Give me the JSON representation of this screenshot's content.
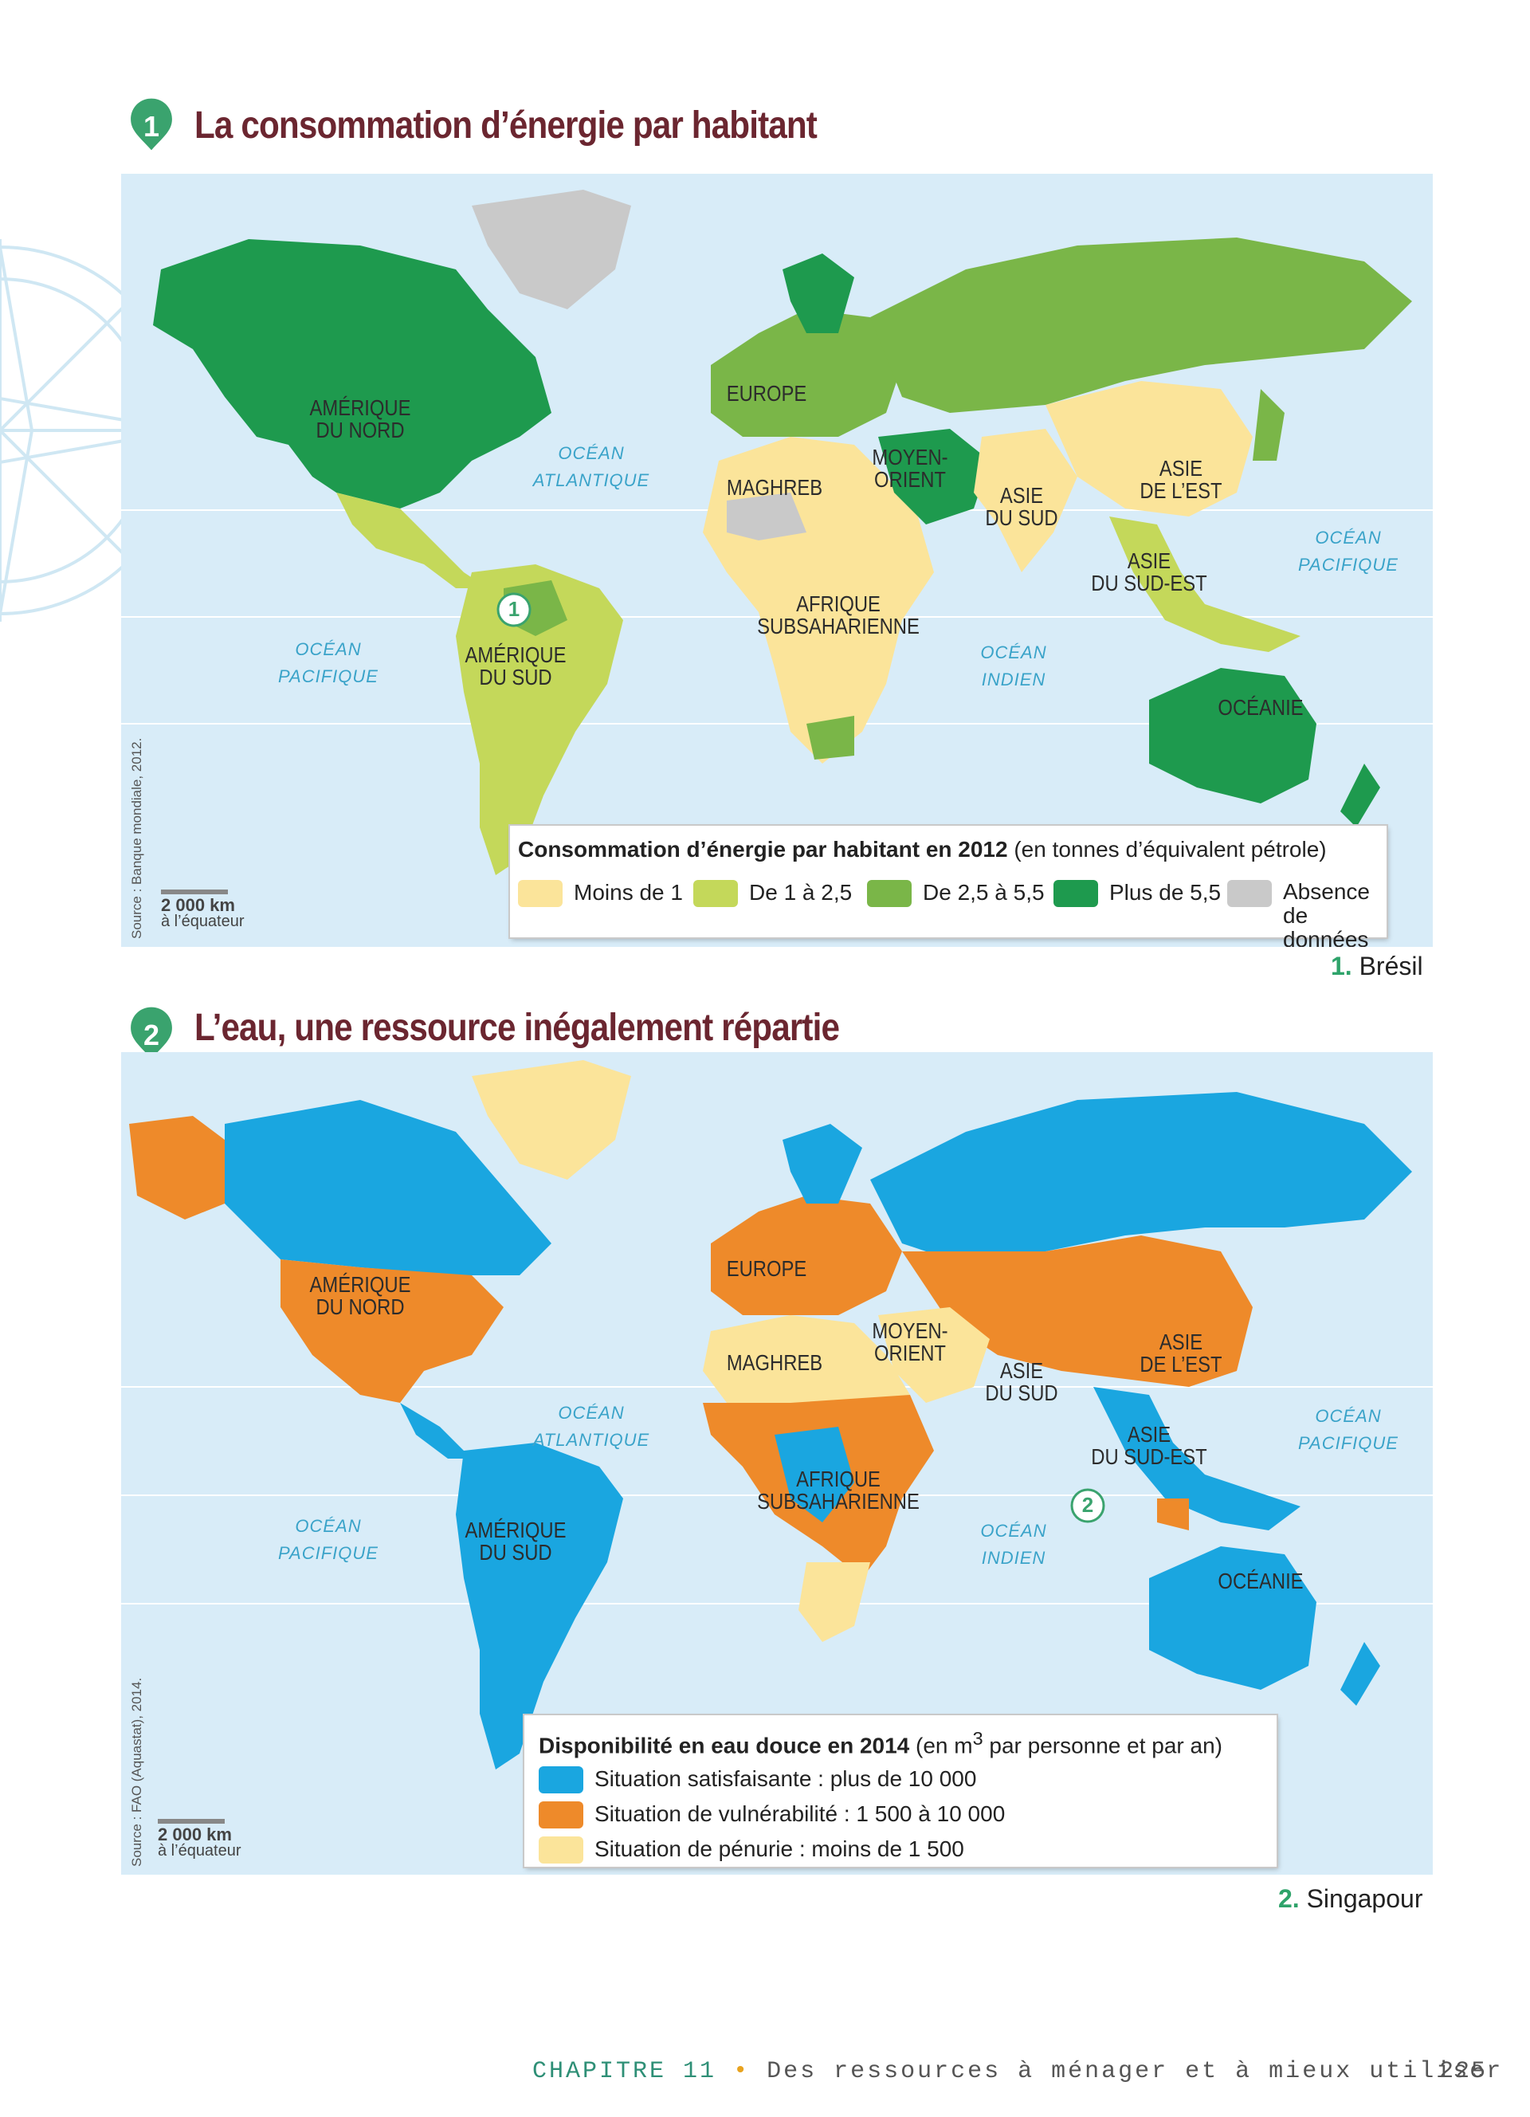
{
  "colors": {
    "title": "#6b2630",
    "badge": "#3aa36e",
    "ocean": "#d8ecf8",
    "ocean_text": "#3aa3c9",
    "energy_lt1": "#fbe49a",
    "energy_1_2_5": "#c4d85a",
    "energy_2_5_5_5": "#7ab648",
    "energy_gt5_5": "#1e9a4e",
    "no_data": "#c9c9c9",
    "water_satisfying": "#1aa6e0",
    "water_vulnerable": "#ee8a2a",
    "water_shortage": "#fbe49a"
  },
  "map1": {
    "number": "1",
    "title": "La consommation d’énergie par habitant",
    "regions": {
      "north_america": "AMÉRIQUE\nDU NORD",
      "europe": "EUROPE",
      "middle_east": "MOYEN-\nORIENT",
      "maghreb": "MAGHREB",
      "south_asia": "ASIE\nDU SUD",
      "east_asia": "ASIE\nDE L’EST",
      "southeast_asia": "ASIE\nDU SUD-EST",
      "subsaharan_africa": "AFRIQUE\nSUBSAHARIENNE",
      "south_america": "AMÉRIQUE\nDU SUD",
      "oceania": "OCÉANIE"
    },
    "oceans": {
      "atlantic": "OCÉAN\nATLANTIQUE",
      "pacific_east": "OCÉAN\nPACIFIQUE",
      "pacific_west": "OCÉAN\nPACIFIQUE",
      "indian": "OCÉAN\nINDIEN"
    },
    "source": "Source : Banque mondiale, 2012.",
    "scale_km": "2 000 km",
    "scale_note": "à l’équateur",
    "legend": {
      "title_bold": "Consommation d’énergie par habitant en 2012",
      "title_rest": " (en tonnes d’équivalent pétrole)",
      "items": [
        "Moins de 1",
        "De 1 à 2,5",
        "De 2,5 à 5,5",
        "Plus de 5,5",
        "Absence\nde données"
      ]
    },
    "marker": "1",
    "caption_num": "1.",
    "caption_text": " Brésil"
  },
  "map2": {
    "number": "2",
    "title": "L’eau, une ressource inégalement répartie",
    "regions": {
      "north_america": "AMÉRIQUE\nDU NORD",
      "europe": "EUROPE",
      "middle_east": "MOYEN-\nORIENT",
      "maghreb": "MAGHREB",
      "south_asia": "ASIE\nDU SUD",
      "east_asia": "ASIE\nDE L’EST",
      "southeast_asia": "ASIE\nDU SUD-EST",
      "subsaharan_africa": "AFRIQUE\nSUBSAHARIENNE",
      "south_america": "AMÉRIQUE\nDU SUD",
      "oceania": "OCÉANIE"
    },
    "oceans": {
      "atlantic": "OCÉAN\nATLANTIQUE",
      "pacific_east": "OCÉAN\nPACIFIQUE",
      "pacific_west": "OCÉAN\nPACIFIQUE",
      "indian": "OCÉAN\nINDIEN"
    },
    "source": "Source : FAO (Aquastat), 2014.",
    "scale_km": "2 000 km",
    "scale_note": "à l’équateur",
    "legend": {
      "title_bold": "Disponibilité en eau douce en 2014",
      "title_rest_a": " (en m",
      "title_sup": "3",
      "title_rest_b": " par personne et par an)",
      "items": [
        "Situation satisfaisante : plus de 10 000",
        "Situation de vulnérabilité : 1 500 à 10 000",
        "Situation de pénurie : moins de 1 500"
      ]
    },
    "marker": "2",
    "caption_num": "2.",
    "caption_text": " Singapour"
  },
  "footer": {
    "chapter": "CHAPITRE 11",
    "separator": "•",
    "title": "Des ressources à ménager et à mieux utiliser",
    "page": "225"
  }
}
